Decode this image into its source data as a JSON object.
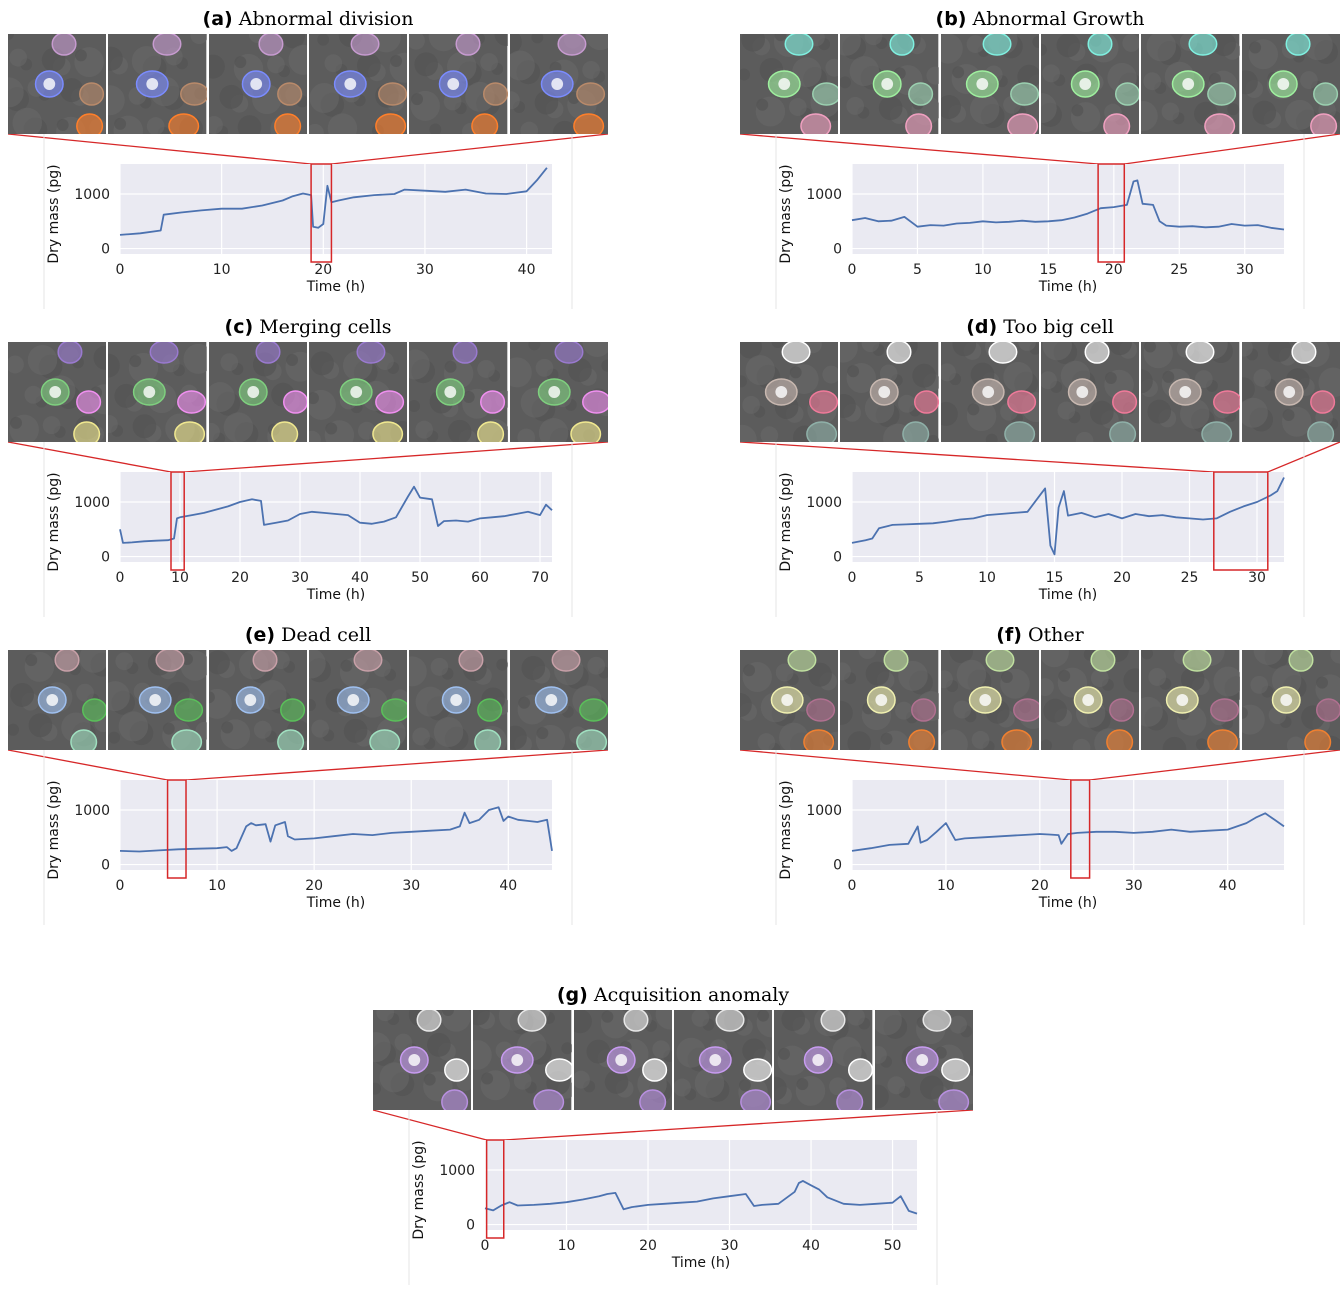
{
  "colors": {
    "line": "#4C72B0",
    "plot_bg": "#EAEAF2",
    "grid": "#FFFFFF",
    "zoom_box": "#D62728"
  },
  "chart_data": [
    {
      "id": "a",
      "letter": "(a)",
      "title": "Abnormal division",
      "type": "line",
      "xlabel": "Time (h)",
      "ylabel": "Dry mass (pg)",
      "xticks": [
        0,
        10,
        20,
        30,
        40
      ],
      "yticks": [
        0,
        1000
      ],
      "xlim": [
        0,
        42.5
      ],
      "ylim": [
        -100,
        1550
      ],
      "highlight": [
        18.8,
        20.8
      ],
      "cells": [
        "#7b8cff",
        "#b98a6a",
        "#ff7f2a",
        "#c79bd0"
      ],
      "series": [
        {
          "x": [
            0,
            2,
            4,
            4.3,
            6,
            8,
            10,
            12,
            14,
            16,
            17,
            18,
            18.8,
            19,
            19.5,
            20,
            20.4,
            20.8,
            21.5,
            23,
            25,
            27,
            28,
            30,
            32,
            34,
            36,
            38,
            40,
            41,
            42
          ],
          "values": [
            250,
            280,
            330,
            620,
            660,
            700,
            730,
            730,
            790,
            880,
            960,
            1010,
            980,
            400,
            380,
            450,
            1150,
            850,
            880,
            940,
            980,
            1000,
            1080,
            1060,
            1040,
            1080,
            1010,
            1000,
            1050,
            1250,
            1480
          ]
        }
      ]
    },
    {
      "id": "b",
      "letter": "(b)",
      "title": "Abnormal Growth",
      "type": "line",
      "xlabel": "Time (h)",
      "ylabel": "Dry mass (pg)",
      "xticks": [
        0,
        5,
        10,
        15,
        20,
        25,
        30
      ],
      "yticks": [
        0,
        1000
      ],
      "xlim": [
        0,
        33
      ],
      "ylim": [
        -100,
        1550
      ],
      "highlight": [
        18.8,
        20.8
      ],
      "cells": [
        "#9ff09f",
        "#9bd0b0",
        "#f0a0c0",
        "#80f0e0"
      ],
      "series": [
        {
          "x": [
            0,
            1,
            2,
            3,
            4,
            5,
            6,
            7,
            8,
            9,
            10,
            11,
            12,
            13,
            14,
            15,
            16,
            17,
            18,
            19,
            20,
            21,
            21.5,
            21.8,
            22.2,
            23,
            23.5,
            24,
            25,
            26,
            27,
            28,
            29,
            30,
            31,
            32,
            33
          ],
          "values": [
            520,
            560,
            500,
            510,
            580,
            400,
            430,
            420,
            460,
            470,
            500,
            480,
            490,
            510,
            490,
            500,
            520,
            570,
            640,
            740,
            760,
            800,
            1230,
            1250,
            820,
            800,
            500,
            420,
            400,
            410,
            390,
            400,
            450,
            420,
            430,
            380,
            350
          ]
        }
      ]
    },
    {
      "id": "c",
      "letter": "(c)",
      "title": "Merging cells",
      "type": "line",
      "xlabel": "Time (h)",
      "ylabel": "Dry mass (pg)",
      "xticks": [
        0,
        10,
        20,
        30,
        40,
        50,
        60,
        70
      ],
      "yticks": [
        0,
        1000
      ],
      "xlim": [
        0,
        72
      ],
      "ylim": [
        -100,
        1550
      ],
      "highlight": [
        8.5,
        10.7
      ],
      "cells": [
        "#7fd07f",
        "#f090f0",
        "#f0e890",
        "#9a7ad0"
      ],
      "series": [
        {
          "x": [
            0,
            0.5,
            2,
            4,
            6,
            8,
            9,
            9.5,
            10,
            12,
            14,
            16,
            18,
            20,
            22,
            23.5,
            24,
            26,
            28,
            30,
            32,
            34,
            36,
            38,
            40,
            42,
            44,
            46,
            48,
            49,
            50,
            52,
            53,
            54,
            56,
            58,
            60,
            62,
            64,
            66,
            68,
            70,
            71,
            72
          ],
          "values": [
            500,
            250,
            260,
            280,
            290,
            300,
            330,
            700,
            720,
            760,
            800,
            860,
            920,
            1000,
            1050,
            1020,
            580,
            620,
            660,
            780,
            820,
            800,
            780,
            760,
            620,
            600,
            640,
            720,
            1100,
            1280,
            1080,
            1050,
            560,
            650,
            660,
            640,
            700,
            720,
            740,
            780,
            820,
            760,
            950,
            850
          ]
        }
      ]
    },
    {
      "id": "d",
      "letter": "(d)",
      "title": "Too big cell",
      "type": "line",
      "xlabel": "Time (h)",
      "ylabel": "Dry mass (pg)",
      "xticks": [
        0,
        5,
        10,
        15,
        20,
        25,
        30
      ],
      "yticks": [
        0,
        1000
      ],
      "xlim": [
        0,
        32
      ],
      "ylim": [
        -100,
        1550
      ],
      "highlight": [
        26.8,
        30.8
      ],
      "cells": [
        "#c8b8b0",
        "#f07a9a",
        "#8fb0a8",
        "#ffffff"
      ],
      "series": [
        {
          "x": [
            0,
            1,
            1.5,
            2,
            3,
            4,
            5,
            6,
            7,
            8,
            9,
            10,
            11,
            12,
            13,
            14,
            14.3,
            14.7,
            15,
            15.3,
            15.7,
            16,
            17,
            18,
            19,
            20,
            21,
            22,
            23,
            24,
            25,
            26,
            27,
            28,
            29,
            30,
            31,
            31.5,
            32
          ],
          "values": [
            250,
            300,
            330,
            520,
            580,
            590,
            600,
            610,
            640,
            680,
            700,
            760,
            780,
            800,
            820,
            1150,
            1250,
            200,
            40,
            900,
            1200,
            750,
            800,
            720,
            780,
            700,
            780,
            740,
            760,
            720,
            700,
            680,
            700,
            820,
            920,
            1000,
            1120,
            1200,
            1450
          ]
        }
      ]
    },
    {
      "id": "e",
      "letter": "(e)",
      "title": "Dead cell",
      "type": "line",
      "xlabel": "Time (h)",
      "ylabel": "Dry mass (pg)",
      "xticks": [
        0,
        10,
        20,
        30,
        40
      ],
      "yticks": [
        0,
        1000
      ],
      "xlim": [
        0,
        44.5
      ],
      "ylim": [
        -100,
        1550
      ],
      "highlight": [
        4.9,
        6.8
      ],
      "cells": [
        "#9fc0f0",
        "#5ac05a",
        "#a0e0c0",
        "#c8a0a8"
      ],
      "series": [
        {
          "x": [
            0,
            2,
            4,
            6,
            8,
            10,
            11,
            11.5,
            12,
            13,
            13.5,
            14,
            15,
            15.5,
            16,
            17,
            17.3,
            18,
            20,
            22,
            24,
            26,
            28,
            30,
            32,
            34,
            35,
            35.5,
            36,
            37,
            38,
            39,
            39.5,
            40,
            41,
            42,
            43,
            44,
            44.5
          ],
          "values": [
            250,
            240,
            260,
            280,
            290,
            300,
            320,
            250,
            300,
            700,
            760,
            720,
            740,
            420,
            720,
            780,
            520,
            460,
            480,
            520,
            560,
            540,
            580,
            600,
            620,
            640,
            700,
            950,
            760,
            820,
            1000,
            1050,
            800,
            880,
            820,
            800,
            780,
            820,
            250
          ]
        }
      ]
    },
    {
      "id": "f",
      "letter": "(f)",
      "title": "Other",
      "type": "line",
      "xlabel": "Time (h)",
      "ylabel": "Dry mass (pg)",
      "xticks": [
        0,
        10,
        20,
        30,
        40
      ],
      "yticks": [
        0,
        1000
      ],
      "xlim": [
        0,
        46
      ],
      "ylim": [
        -100,
        1550
      ],
      "highlight": [
        23.3,
        25.3
      ],
      "cells": [
        "#f0f0b0",
        "#b07090",
        "#f08030",
        "#c0e0a0"
      ],
      "series": [
        {
          "x": [
            0,
            2,
            4,
            6,
            7,
            7.3,
            8,
            9,
            10,
            11,
            12,
            14,
            16,
            18,
            20,
            21,
            22,
            22.3,
            23,
            24,
            26,
            28,
            30,
            32,
            34,
            36,
            38,
            40,
            42,
            43,
            44,
            45,
            46
          ],
          "values": [
            250,
            300,
            360,
            380,
            700,
            400,
            450,
            600,
            760,
            450,
            480,
            500,
            520,
            540,
            560,
            550,
            540,
            380,
            560,
            580,
            600,
            600,
            580,
            600,
            640,
            600,
            620,
            640,
            760,
            860,
            940,
            820,
            700
          ]
        }
      ]
    },
    {
      "id": "g",
      "letter": "(g)",
      "title": "Acquisition anomaly",
      "type": "line",
      "xlabel": "Time (h)",
      "ylabel": "Dry mass (pg)",
      "xticks": [
        0,
        10,
        20,
        30,
        40,
        50
      ],
      "yticks": [
        0,
        1000
      ],
      "xlim": [
        0,
        53
      ],
      "ylim": [
        -100,
        1550
      ],
      "highlight": [
        0.2,
        2.3
      ],
      "cells": [
        "#c79bf0",
        "#ffffff",
        "#b890e0",
        "#e8e8e8"
      ],
      "series": [
        {
          "x": [
            0,
            1,
            2,
            3,
            4,
            6,
            8,
            10,
            12,
            14,
            15,
            16,
            17,
            18,
            20,
            22,
            24,
            26,
            28,
            30,
            32,
            33,
            34,
            36,
            38,
            38.5,
            39,
            40,
            41,
            42,
            44,
            46,
            48,
            50,
            51,
            52,
            53
          ],
          "values": [
            300,
            260,
            350,
            410,
            350,
            360,
            380,
            410,
            460,
            520,
            560,
            580,
            280,
            320,
            360,
            380,
            400,
            420,
            480,
            520,
            560,
            340,
            360,
            380,
            600,
            760,
            800,
            720,
            640,
            500,
            380,
            360,
            380,
            400,
            520,
            250,
            200
          ]
        }
      ]
    }
  ]
}
